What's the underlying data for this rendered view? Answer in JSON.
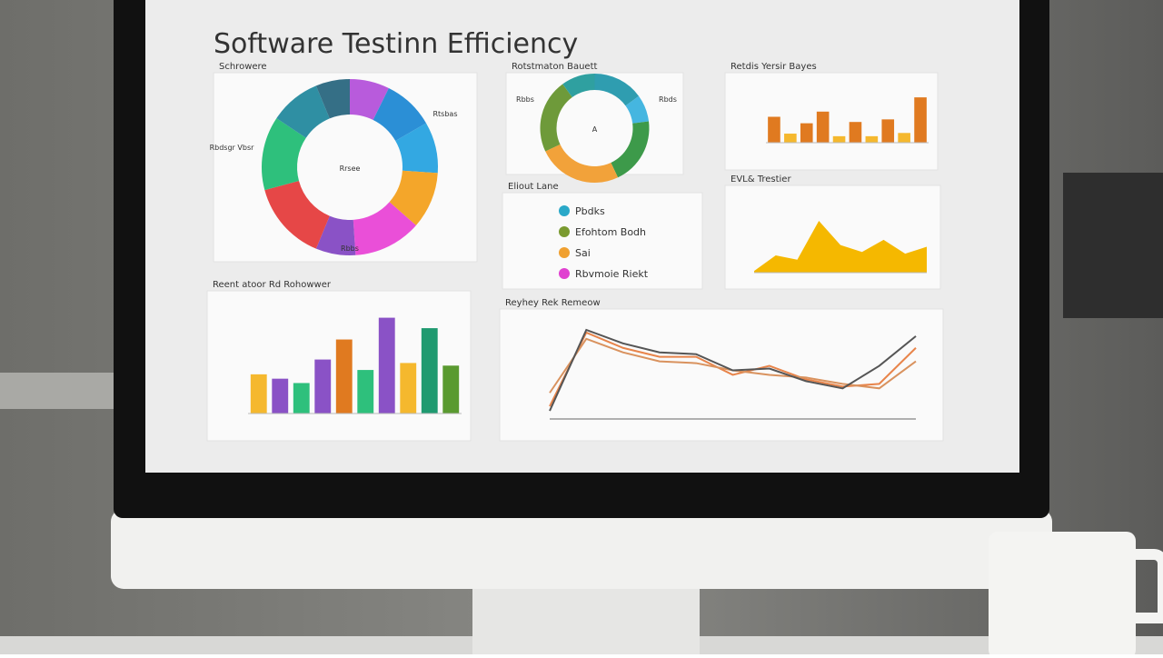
{
  "title": "Software Testinn Efficiency",
  "panels": [
    {
      "type": "donut",
      "title": "Schrowere",
      "center_label": "Rrsee",
      "labels": [
        "Rtsbas",
        "Rbdsgr Vbsr",
        "Rbbs"
      ],
      "values": [
        7,
        9,
        9,
        10,
        12,
        7,
        14,
        13,
        9,
        6
      ],
      "colors": [
        "#b85bdc",
        "#2b8fd6",
        "#33a8e2",
        "#f4a62a",
        "#ea4fd8",
        "#8a52c6",
        "#e64747",
        "#2ec07c",
        "#2f8fa3",
        "#356f86"
      ]
    },
    {
      "type": "donut",
      "title": "Rotstmaton Bauett",
      "center_label": "A",
      "labels": [
        "Rbbs",
        "Rbds"
      ],
      "values": [
        15,
        8,
        20,
        25,
        22,
        10
      ],
      "colors": [
        "#2f9db0",
        "#45b6e0",
        "#3d9a4a",
        "#f2a23a",
        "#6e9a3a",
        "#2fa0a0"
      ]
    },
    {
      "type": "bar",
      "title": "Retdis Yersir Bayes",
      "ylim": [
        0,
        80
      ],
      "values": [
        40,
        14,
        30,
        48,
        10,
        32,
        10,
        36,
        15,
        70
      ],
      "colors": [
        "#e07a20",
        "#f5b82e",
        "#e07a20",
        "#e07a20",
        "#f5b82e",
        "#e07a20",
        "#f5b82e",
        "#e07a20",
        "#f5b82e",
        "#e07a20"
      ]
    },
    {
      "type": "legend",
      "title": "Eliout Lane",
      "items": [
        {
          "name": "Pbdks",
          "color": "#2aa8c8"
        },
        {
          "name": "Efohtom Bodh",
          "color": "#7a9a30"
        },
        {
          "name": "Sai",
          "color": "#f0a030"
        },
        {
          "name": "Rbvmoie Riekt",
          "color": "#e040d0"
        }
      ]
    },
    {
      "type": "area",
      "title": "EVL& Trestier",
      "ylim": [
        0,
        80
      ],
      "color": "#f5b800",
      "values": [
        2,
        20,
        15,
        60,
        32,
        24,
        38,
        22,
        30
      ]
    },
    {
      "type": "bar",
      "title": "Reent atoor Rd Rohowwer",
      "ylim": [
        0,
        120
      ],
      "values": [
        45,
        40,
        35,
        62,
        85,
        50,
        110,
        58,
        98,
        55
      ],
      "colors": [
        "#f5b82e",
        "#8a52c6",
        "#2ec07c",
        "#8a52c6",
        "#e07a20",
        "#2ec07c",
        "#8a52c6",
        "#f5b82e",
        "#1f9a70",
        "#5a9a30"
      ]
    },
    {
      "type": "line",
      "title": "Reyhey Rek Remeow",
      "ylim": [
        0,
        100
      ],
      "series": [
        {
          "color": "#e8844a",
          "values": [
            10,
            92,
            75,
            65,
            65,
            45,
            55,
            40,
            32,
            35,
            75
          ]
        },
        {
          "color": "#d9925e",
          "values": [
            25,
            85,
            70,
            60,
            58,
            50,
            45,
            42,
            35,
            30,
            60
          ]
        },
        {
          "color": "#555555",
          "values": [
            5,
            95,
            80,
            70,
            68,
            50,
            52,
            38,
            30,
            55,
            88
          ]
        }
      ]
    }
  ]
}
